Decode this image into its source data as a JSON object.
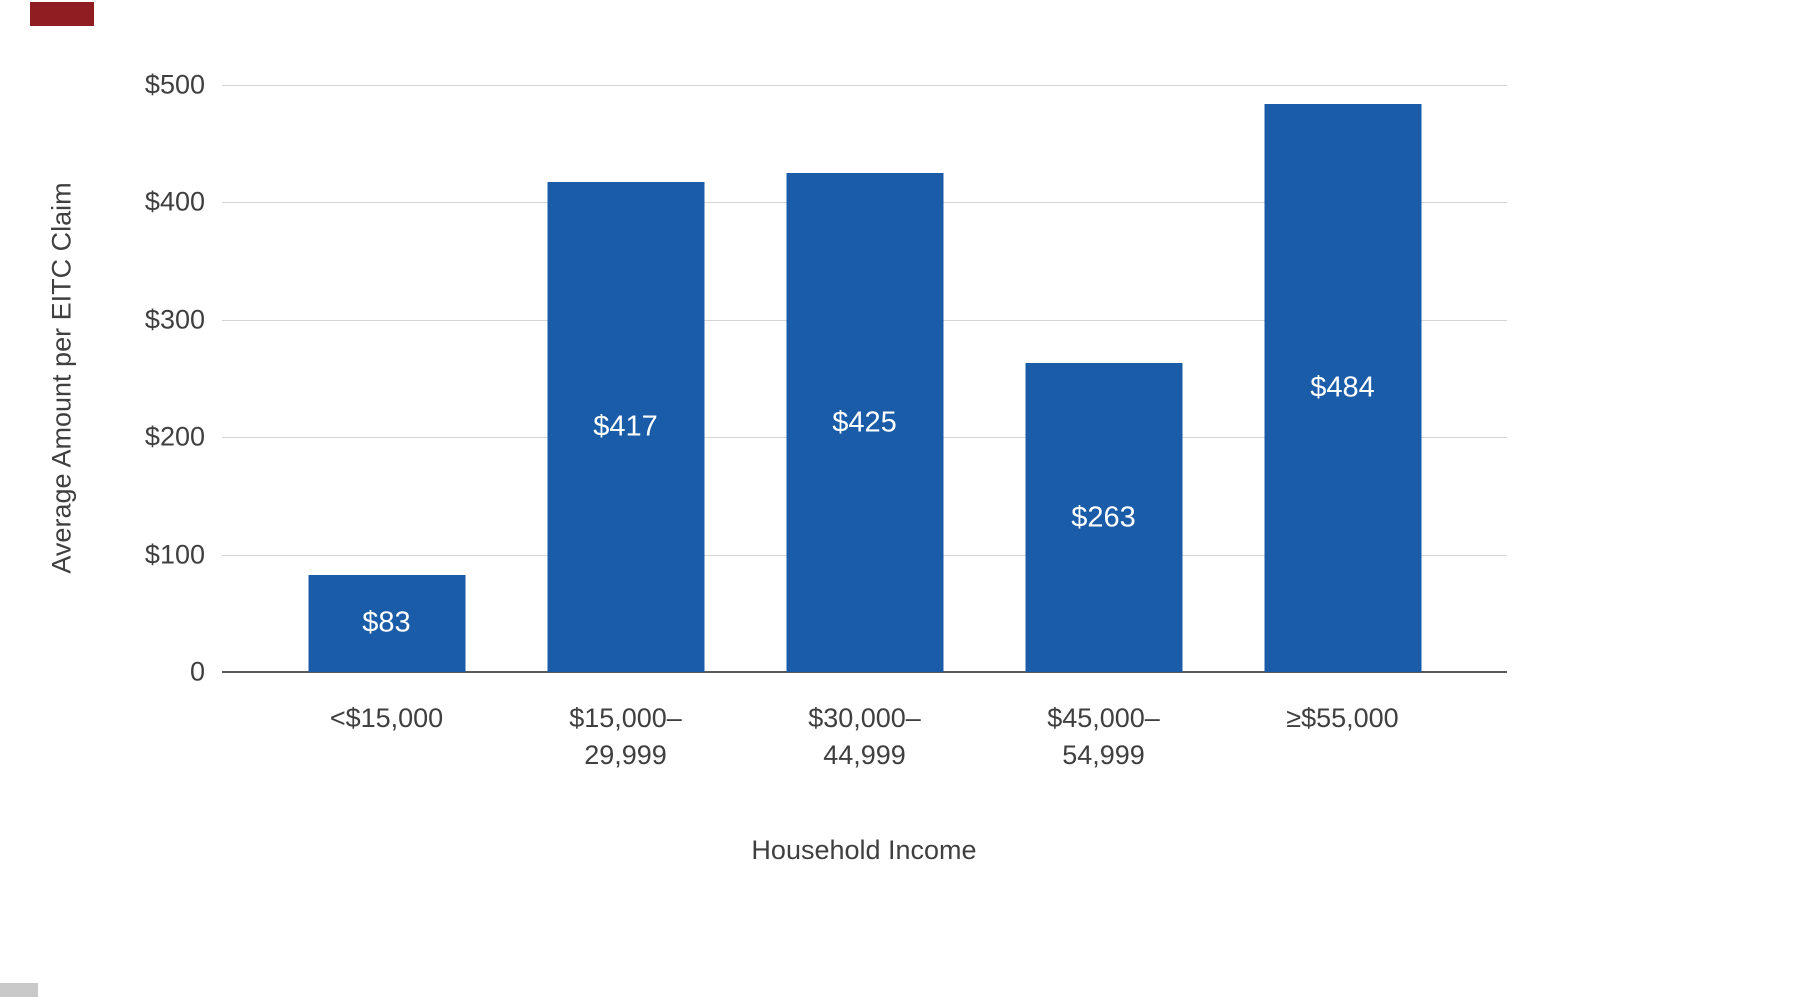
{
  "page": {
    "background": "#ffffff"
  },
  "artifacts": {
    "top_left_mark_color": "#8f1d21",
    "bottom_left_fragment_color": "#c9c9c9"
  },
  "chart_data": {
    "type": "bar",
    "title": "",
    "xlabel": "Household Income",
    "ylabel": "Average Amount per EITC Claim",
    "categories": [
      [
        "<$15,000"
      ],
      [
        "$15,000–",
        "29,999"
      ],
      [
        "$30,000–",
        "44,999"
      ],
      [
        "$45,000–",
        "54,999"
      ],
      [
        "≥$55,000"
      ]
    ],
    "values": [
      83,
      417,
      425,
      263,
      484
    ],
    "value_labels": [
      "$83",
      "$417",
      "$425",
      "$263",
      "$484"
    ],
    "ylim": [
      0,
      500
    ],
    "yticks": [
      0,
      100,
      200,
      300,
      400,
      500
    ],
    "ytick_labels": [
      "0",
      "$100",
      "$200",
      "$300",
      "$400",
      "$500"
    ],
    "grid": "horizontal",
    "legend": "none",
    "bar_color": "#1b5ca8",
    "label_color": "#ffffff",
    "grid_color": "#d4d4d4",
    "axis_color": "#5a5a5a",
    "text_color": "#3f3f3f"
  }
}
